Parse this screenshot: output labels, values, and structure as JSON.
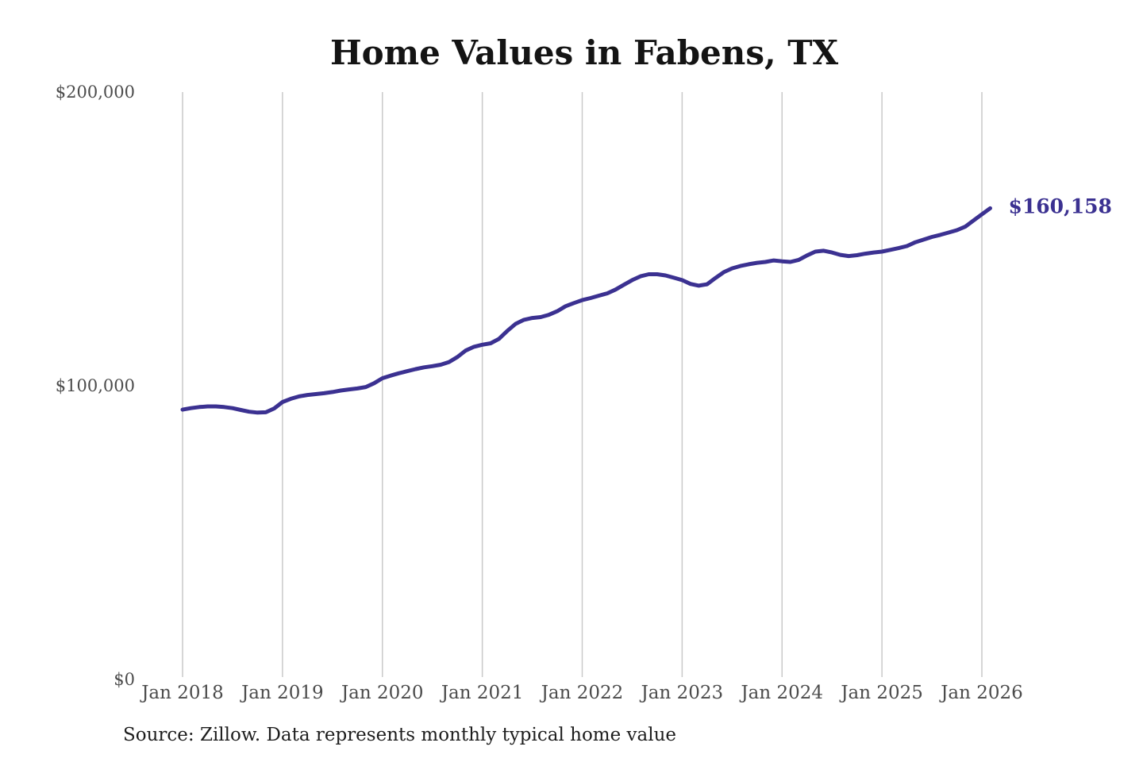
{
  "page": {
    "title": "Home Values in Fabens, TX",
    "source_note": "Source: Zillow. Data represents monthly typical home value"
  },
  "chart_data": {
    "type": "line",
    "title": "Home Values in Fabens, TX",
    "series_name": "Monthly typical home value",
    "x_start": "Jan 2018",
    "x_end": "Feb 2026",
    "x_tick_labels": [
      "Jan 2018",
      "Jan 2019",
      "Jan 2020",
      "Jan 2021",
      "Jan 2022",
      "Jan 2023",
      "Jan 2024",
      "Jan 2025",
      "Jan 2026"
    ],
    "y_ticks": [
      {
        "label": "$200,000",
        "value": 200000
      },
      {
        "label": "$100,000",
        "value": 100000
      },
      {
        "label": "$0",
        "value": 0
      }
    ],
    "ylim": [
      0,
      200000
    ],
    "grid": "vertical-only",
    "legend": "none",
    "end_value": 160158,
    "end_label": "$160,158",
    "colors": {
      "line": "#3b3191",
      "grid": "#c9c9c9",
      "axis_labels": "#4c4c4c",
      "title": "#141414",
      "source": "#1d1d1d"
    },
    "monthly_values": [
      91600,
      92100,
      92500,
      92700,
      92700,
      92500,
      92100,
      91500,
      90900,
      90600,
      90700,
      92000,
      94200,
      95300,
      96100,
      96600,
      96900,
      97200,
      97600,
      98100,
      98500,
      98800,
      99300,
      100600,
      102300,
      103200,
      104000,
      104700,
      105400,
      106000,
      106400,
      106900,
      107800,
      109500,
      111700,
      113000,
      113700,
      114200,
      115700,
      118400,
      120800,
      122200,
      122800,
      123100,
      123900,
      125100,
      126800,
      127900,
      128900,
      129600,
      130400,
      131200,
      132500,
      134100,
      135700,
      137000,
      137700,
      137700,
      137300,
      136500,
      135700,
      134400,
      133800,
      134300,
      136400,
      138400,
      139700,
      140500,
      141100,
      141600,
      141900,
      142400,
      142100,
      141900,
      142600,
      144100,
      145400,
      145700,
      145100,
      144300,
      143900,
      144200,
      144700,
      145100,
      145400,
      146000,
      146600,
      147300,
      148600,
      149500,
      150400,
      151100,
      151900,
      152700,
      153900,
      156000,
      158100,
      160158
    ]
  }
}
